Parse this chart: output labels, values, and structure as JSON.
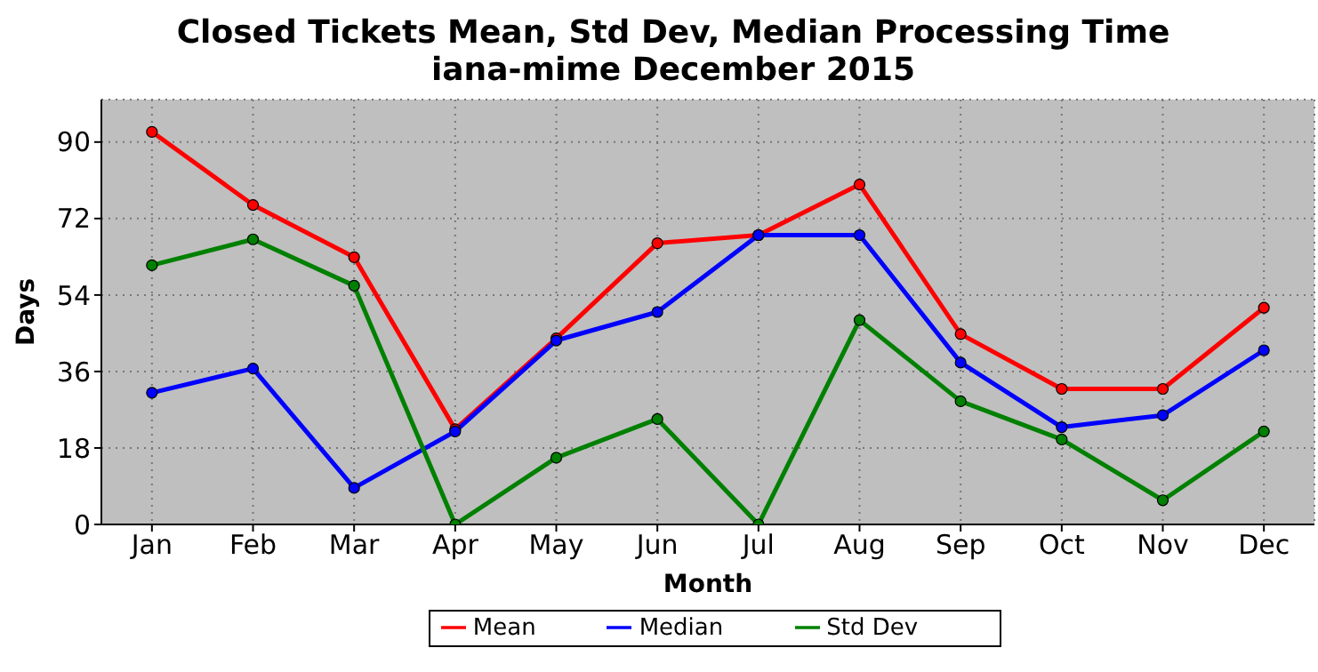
{
  "chart_data": {
    "type": "line",
    "title": "Closed Tickets Mean, Std Dev, Median Processing Time\niana-mime December 2015",
    "xlabel": "Month",
    "ylabel": "Days",
    "categories": [
      "Jan",
      "Feb",
      "Mar",
      "Apr",
      "May",
      "Jun",
      "Jul",
      "Aug",
      "Sep",
      "Oct",
      "Nov",
      "Dec"
    ],
    "series": [
      {
        "name": "Mean",
        "color": "#ff0000",
        "values": [
          92.4,
          75.2,
          62.9,
          22.4,
          43.8,
          66.2,
          68.1,
          80,
          44.8,
          31.9,
          31.9,
          51
        ]
      },
      {
        "name": "Median",
        "color": "#0000ff",
        "values": [
          31,
          36.7,
          8.6,
          21.9,
          43.3,
          50,
          68.1,
          68.1,
          38.1,
          22.9,
          25.7,
          41
        ]
      },
      {
        "name": "Std Dev",
        "color": "#008000",
        "values": [
          61,
          67.1,
          56.2,
          0,
          15.7,
          24.8,
          0,
          48.1,
          29,
          20,
          5.7,
          21.9
        ]
      }
    ],
    "ylim": [
      0,
      100
    ],
    "yticks": [
      0,
      18,
      36,
      54,
      72,
      90
    ],
    "grid": true,
    "legend": "bottom",
    "marker": "circle",
    "line_style": "solid"
  }
}
